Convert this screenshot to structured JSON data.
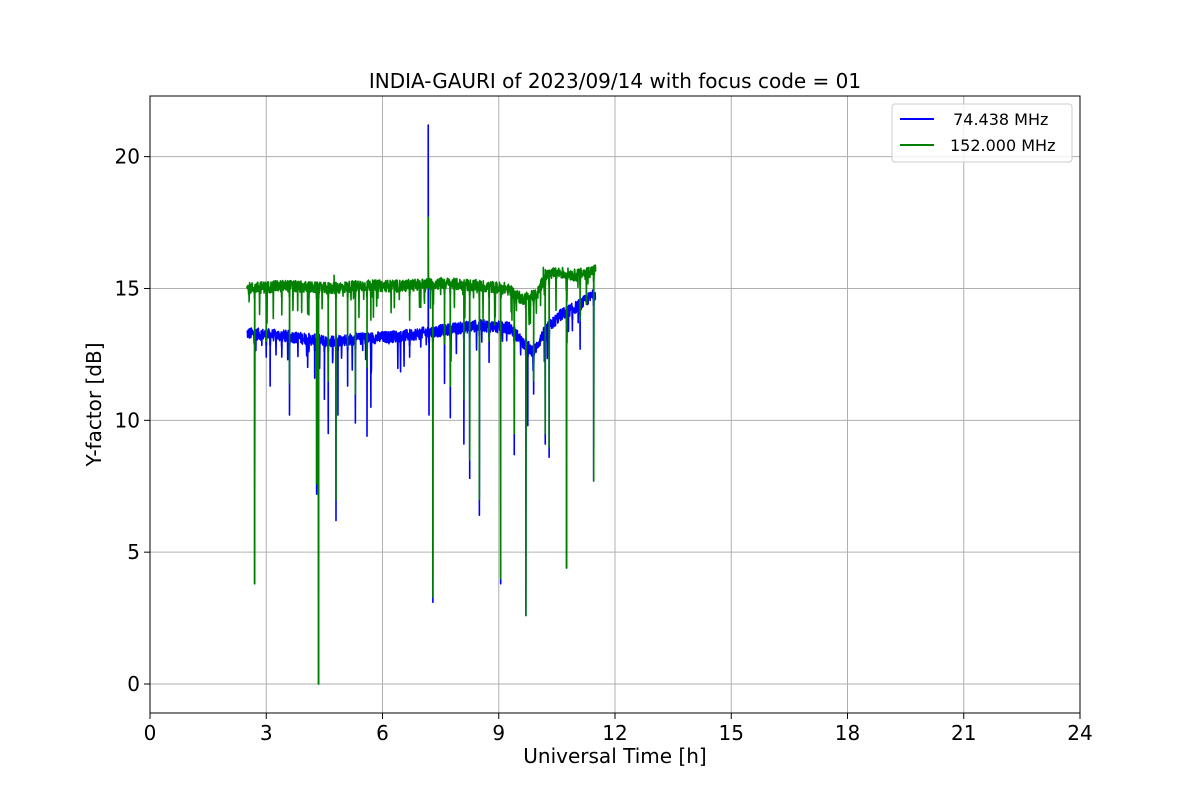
{
  "chart_data": {
    "type": "line",
    "title": "INDIA-GAURI of 2023/09/14 with focus code = 01",
    "xlabel": "Universal Time [h]",
    "ylabel": "Y-factor [dB]",
    "xlim": [
      0,
      24
    ],
    "ylim": [
      -1.1,
      22.3
    ],
    "xticks": [
      0,
      3,
      6,
      9,
      12,
      15,
      18,
      21,
      24
    ],
    "yticks": [
      0,
      5,
      10,
      15,
      20
    ],
    "grid": true,
    "legend_position": "top-right",
    "series": [
      {
        "name": " 74.438 MHz",
        "color": "#0000ff",
        "baseline": [
          [
            2.5,
            13.3
          ],
          [
            3.5,
            13.2
          ],
          [
            4.5,
            13.0
          ],
          [
            5.5,
            13.1
          ],
          [
            6.5,
            13.2
          ],
          [
            7.5,
            13.4
          ],
          [
            8.5,
            13.6
          ],
          [
            9.3,
            13.5
          ],
          [
            9.6,
            13.0
          ],
          [
            9.9,
            12.6
          ],
          [
            10.2,
            13.4
          ],
          [
            10.6,
            14.0
          ],
          [
            11.0,
            14.3
          ],
          [
            11.5,
            14.8
          ]
        ],
        "dips": [
          [
            2.7,
            3.8
          ],
          [
            3.0,
            12.4
          ],
          [
            3.1,
            11.3
          ],
          [
            3.4,
            12.4
          ],
          [
            3.6,
            10.2
          ],
          [
            4.1,
            12.6
          ],
          [
            4.25,
            11.6
          ],
          [
            4.3,
            7.2
          ],
          [
            4.35,
            0.0
          ],
          [
            4.5,
            10.8
          ],
          [
            4.6,
            9.5
          ],
          [
            4.8,
            6.2
          ],
          [
            4.85,
            10.2
          ],
          [
            5.1,
            11.3
          ],
          [
            5.3,
            9.9
          ],
          [
            5.6,
            9.4
          ],
          [
            5.7,
            10.5
          ],
          [
            6.7,
            12.4
          ],
          [
            7.2,
            10.2
          ],
          [
            7.3,
            3.1
          ],
          [
            7.6,
            11.4
          ],
          [
            7.75,
            10.1
          ],
          [
            8.1,
            9.1
          ],
          [
            8.25,
            7.8
          ],
          [
            8.5,
            6.4
          ],
          [
            8.75,
            12.2
          ],
          [
            9.05,
            3.8
          ],
          [
            9.4,
            8.7
          ],
          [
            9.7,
            2.6
          ],
          [
            9.75,
            9.8
          ],
          [
            9.9,
            11.0
          ],
          [
            10.2,
            9.1
          ],
          [
            10.3,
            8.6
          ],
          [
            10.75,
            4.4
          ],
          [
            10.9,
            13.4
          ],
          [
            11.1,
            12.7
          ],
          [
            11.45,
            7.7
          ]
        ],
        "spikes": [
          [
            7.18,
            21.2
          ]
        ]
      },
      {
        "name": "152.000 MHz",
        "color": "#008000",
        "baseline": [
          [
            2.5,
            15.0
          ],
          [
            3.5,
            15.1
          ],
          [
            4.5,
            15.0
          ],
          [
            5.5,
            15.1
          ],
          [
            6.5,
            15.1
          ],
          [
            7.5,
            15.2
          ],
          [
            8.5,
            15.1
          ],
          [
            9.2,
            15.0
          ],
          [
            9.6,
            14.6
          ],
          [
            10.0,
            14.8
          ],
          [
            10.2,
            15.5
          ],
          [
            10.6,
            15.6
          ],
          [
            11.0,
            15.5
          ],
          [
            11.5,
            15.7
          ]
        ],
        "dips": [
          [
            2.7,
            3.8
          ],
          [
            3.0,
            13.0
          ],
          [
            3.4,
            14.0
          ],
          [
            3.6,
            11.4
          ],
          [
            4.1,
            14.0
          ],
          [
            4.3,
            7.6
          ],
          [
            4.35,
            0.0
          ],
          [
            4.6,
            11.5
          ],
          [
            4.8,
            7.0
          ],
          [
            5.1,
            12.8
          ],
          [
            5.3,
            11.0
          ],
          [
            5.6,
            12.0
          ],
          [
            5.7,
            13.8
          ],
          [
            6.7,
            13.8
          ],
          [
            7.3,
            3.3
          ],
          [
            7.6,
            12.9
          ],
          [
            7.75,
            11.3
          ],
          [
            8.1,
            10.8
          ],
          [
            8.25,
            8.5
          ],
          [
            8.5,
            7.0
          ],
          [
            8.75,
            13.0
          ],
          [
            9.05,
            4.0
          ],
          [
            9.4,
            9.5
          ],
          [
            9.7,
            2.6
          ],
          [
            9.9,
            11.5
          ],
          [
            10.2,
            9.5
          ],
          [
            10.3,
            9.0
          ],
          [
            10.75,
            4.4
          ],
          [
            11.1,
            13.8
          ],
          [
            11.45,
            7.7
          ]
        ],
        "spikes": [
          [
            7.18,
            17.7
          ],
          [
            10.15,
            15.8
          ],
          [
            4.75,
            15.5
          ]
        ]
      }
    ]
  }
}
